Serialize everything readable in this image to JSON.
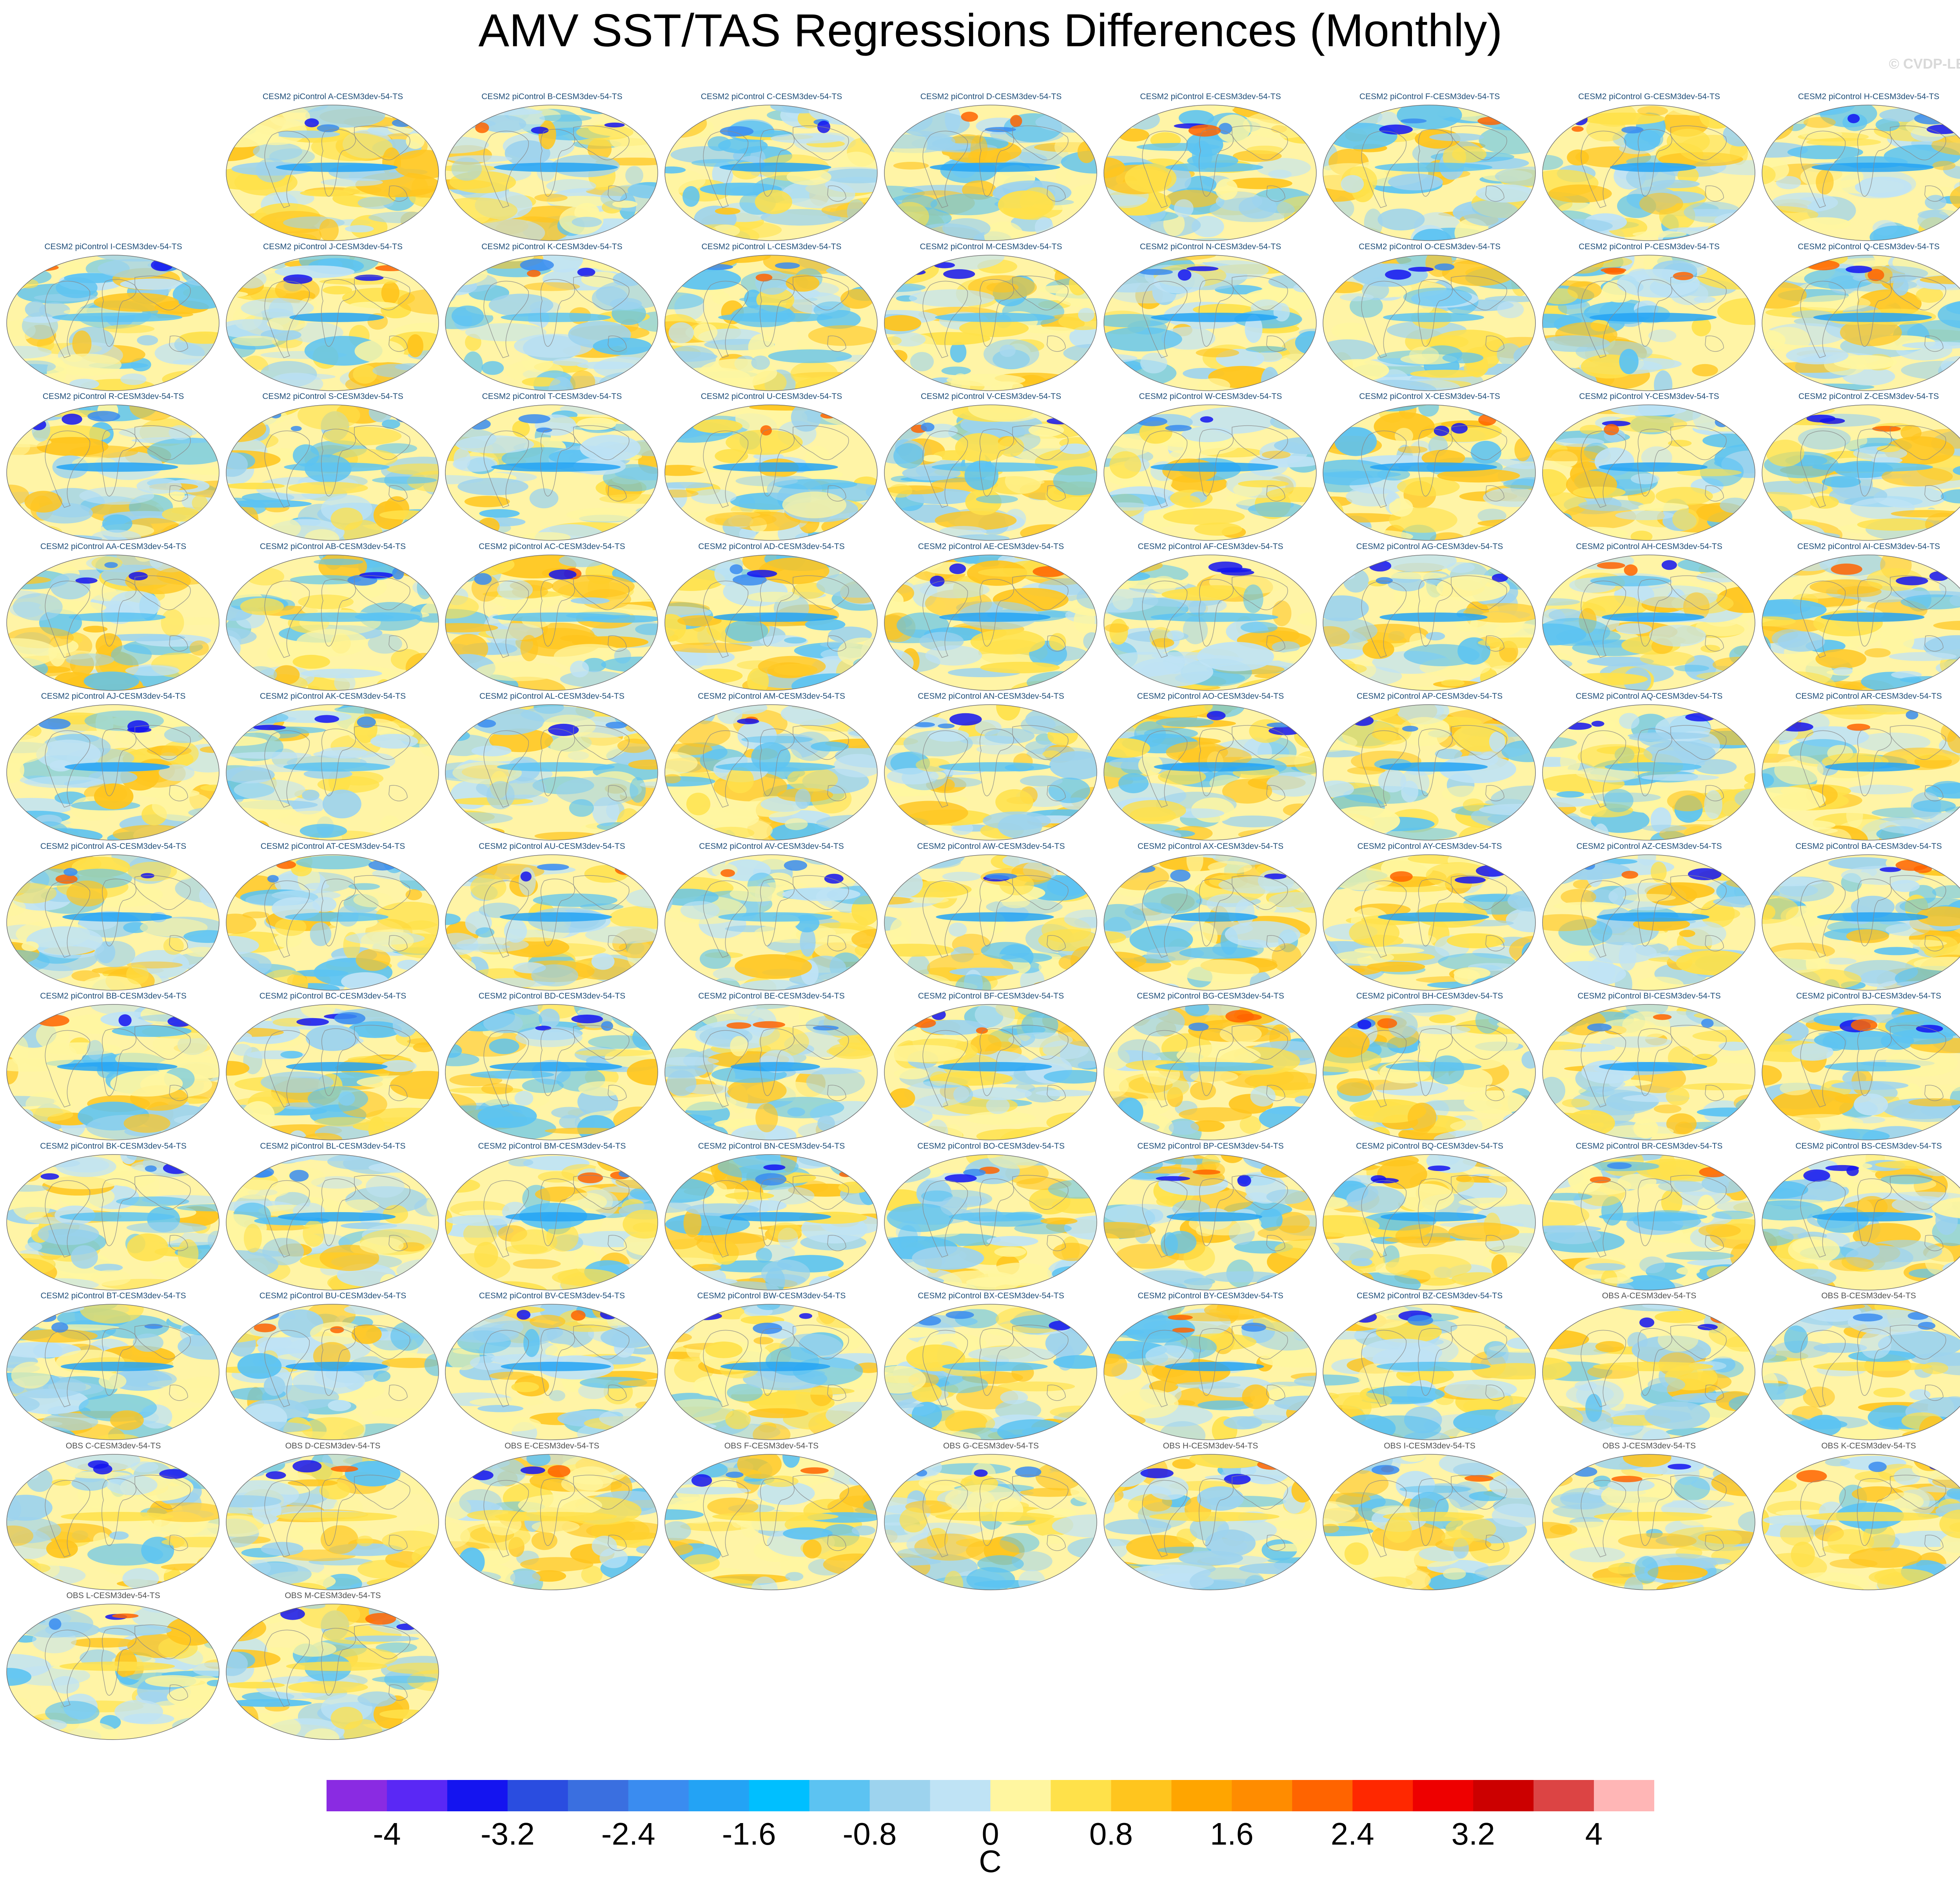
{
  "title": "AMV SST/TAS Regressions Differences (Monthly)",
  "credit": "© CVDP-LE",
  "chart_data": {
    "type": "map-panels",
    "projection": "Robinson (global)",
    "variable": "SST/TAS regression difference",
    "panels": [
      {
        "name": "CESM2 piControl A-CESM3dev-54-TS",
        "kind": "model"
      },
      {
        "name": "CESM2 piControl B-CESM3dev-54-TS",
        "kind": "model"
      },
      {
        "name": "CESM2 piControl C-CESM3dev-54-TS",
        "kind": "model"
      },
      {
        "name": "CESM2 piControl D-CESM3dev-54-TS",
        "kind": "model"
      },
      {
        "name": "CESM2 piControl E-CESM3dev-54-TS",
        "kind": "model"
      },
      {
        "name": "CESM2 piControl F-CESM3dev-54-TS",
        "kind": "model"
      },
      {
        "name": "CESM2 piControl G-CESM3dev-54-TS",
        "kind": "model"
      },
      {
        "name": "CESM2 piControl H-CESM3dev-54-TS",
        "kind": "model"
      },
      {
        "name": "CESM2 piControl I-CESM3dev-54-TS",
        "kind": "model"
      },
      {
        "name": "CESM2 piControl J-CESM3dev-54-TS",
        "kind": "model"
      },
      {
        "name": "CESM2 piControl K-CESM3dev-54-TS",
        "kind": "model"
      },
      {
        "name": "CESM2 piControl L-CESM3dev-54-TS",
        "kind": "model"
      },
      {
        "name": "CESM2 piControl M-CESM3dev-54-TS",
        "kind": "model"
      },
      {
        "name": "CESM2 piControl N-CESM3dev-54-TS",
        "kind": "model"
      },
      {
        "name": "CESM2 piControl O-CESM3dev-54-TS",
        "kind": "model"
      },
      {
        "name": "CESM2 piControl P-CESM3dev-54-TS",
        "kind": "model"
      },
      {
        "name": "CESM2 piControl Q-CESM3dev-54-TS",
        "kind": "model"
      },
      {
        "name": "CESM2 piControl R-CESM3dev-54-TS",
        "kind": "model"
      },
      {
        "name": "CESM2 piControl S-CESM3dev-54-TS",
        "kind": "model"
      },
      {
        "name": "CESM2 piControl T-CESM3dev-54-TS",
        "kind": "model"
      },
      {
        "name": "CESM2 piControl U-CESM3dev-54-TS",
        "kind": "model"
      },
      {
        "name": "CESM2 piControl V-CESM3dev-54-TS",
        "kind": "model"
      },
      {
        "name": "CESM2 piControl W-CESM3dev-54-TS",
        "kind": "model"
      },
      {
        "name": "CESM2 piControl X-CESM3dev-54-TS",
        "kind": "model"
      },
      {
        "name": "CESM2 piControl Y-CESM3dev-54-TS",
        "kind": "model"
      },
      {
        "name": "CESM2 piControl Z-CESM3dev-54-TS",
        "kind": "model"
      },
      {
        "name": "CESM2 piControl AA-CESM3dev-54-TS",
        "kind": "model"
      },
      {
        "name": "CESM2 piControl AB-CESM3dev-54-TS",
        "kind": "model"
      },
      {
        "name": "CESM2 piControl AC-CESM3dev-54-TS",
        "kind": "model"
      },
      {
        "name": "CESM2 piControl AD-CESM3dev-54-TS",
        "kind": "model"
      },
      {
        "name": "CESM2 piControl AE-CESM3dev-54-TS",
        "kind": "model"
      },
      {
        "name": "CESM2 piControl AF-CESM3dev-54-TS",
        "kind": "model"
      },
      {
        "name": "CESM2 piControl AG-CESM3dev-54-TS",
        "kind": "model"
      },
      {
        "name": "CESM2 piControl AH-CESM3dev-54-TS",
        "kind": "model"
      },
      {
        "name": "CESM2 piControl AI-CESM3dev-54-TS",
        "kind": "model"
      },
      {
        "name": "CESM2 piControl AJ-CESM3dev-54-TS",
        "kind": "model"
      },
      {
        "name": "CESM2 piControl AK-CESM3dev-54-TS",
        "kind": "model"
      },
      {
        "name": "CESM2 piControl AL-CESM3dev-54-TS",
        "kind": "model"
      },
      {
        "name": "CESM2 piControl AM-CESM3dev-54-TS",
        "kind": "model"
      },
      {
        "name": "CESM2 piControl AN-CESM3dev-54-TS",
        "kind": "model"
      },
      {
        "name": "CESM2 piControl AO-CESM3dev-54-TS",
        "kind": "model"
      },
      {
        "name": "CESM2 piControl AP-CESM3dev-54-TS",
        "kind": "model"
      },
      {
        "name": "CESM2 piControl AQ-CESM3dev-54-TS",
        "kind": "model"
      },
      {
        "name": "CESM2 piControl AR-CESM3dev-54-TS",
        "kind": "model"
      },
      {
        "name": "CESM2 piControl AS-CESM3dev-54-TS",
        "kind": "model"
      },
      {
        "name": "CESM2 piControl AT-CESM3dev-54-TS",
        "kind": "model"
      },
      {
        "name": "CESM2 piControl AU-CESM3dev-54-TS",
        "kind": "model"
      },
      {
        "name": "CESM2 piControl AV-CESM3dev-54-TS",
        "kind": "model"
      },
      {
        "name": "CESM2 piControl AW-CESM3dev-54-TS",
        "kind": "model"
      },
      {
        "name": "CESM2 piControl AX-CESM3dev-54-TS",
        "kind": "model"
      },
      {
        "name": "CESM2 piControl AY-CESM3dev-54-TS",
        "kind": "model"
      },
      {
        "name": "CESM2 piControl AZ-CESM3dev-54-TS",
        "kind": "model"
      },
      {
        "name": "CESM2 piControl BA-CESM3dev-54-TS",
        "kind": "model"
      },
      {
        "name": "CESM2 piControl BB-CESM3dev-54-TS",
        "kind": "model"
      },
      {
        "name": "CESM2 piControl BC-CESM3dev-54-TS",
        "kind": "model"
      },
      {
        "name": "CESM2 piControl BD-CESM3dev-54-TS",
        "kind": "model"
      },
      {
        "name": "CESM2 piControl BE-CESM3dev-54-TS",
        "kind": "model"
      },
      {
        "name": "CESM2 piControl BF-CESM3dev-54-TS",
        "kind": "model"
      },
      {
        "name": "CESM2 piControl BG-CESM3dev-54-TS",
        "kind": "model"
      },
      {
        "name": "CESM2 piControl BH-CESM3dev-54-TS",
        "kind": "model"
      },
      {
        "name": "CESM2 piControl BI-CESM3dev-54-TS",
        "kind": "model"
      },
      {
        "name": "CESM2 piControl BJ-CESM3dev-54-TS",
        "kind": "model"
      },
      {
        "name": "CESM2 piControl BK-CESM3dev-54-TS",
        "kind": "model"
      },
      {
        "name": "CESM2 piControl BL-CESM3dev-54-TS",
        "kind": "model"
      },
      {
        "name": "CESM2 piControl BM-CESM3dev-54-TS",
        "kind": "model"
      },
      {
        "name": "CESM2 piControl BN-CESM3dev-54-TS",
        "kind": "model"
      },
      {
        "name": "CESM2 piControl BO-CESM3dev-54-TS",
        "kind": "model"
      },
      {
        "name": "CESM2 piControl BP-CESM3dev-54-TS",
        "kind": "model"
      },
      {
        "name": "CESM2 piControl BQ-CESM3dev-54-TS",
        "kind": "model"
      },
      {
        "name": "CESM2 piControl BR-CESM3dev-54-TS",
        "kind": "model"
      },
      {
        "name": "CESM2 piControl BS-CESM3dev-54-TS",
        "kind": "model"
      },
      {
        "name": "CESM2 piControl BT-CESM3dev-54-TS",
        "kind": "model"
      },
      {
        "name": "CESM2 piControl BU-CESM3dev-54-TS",
        "kind": "model"
      },
      {
        "name": "CESM2 piControl BV-CESM3dev-54-TS",
        "kind": "model"
      },
      {
        "name": "CESM2 piControl BW-CESM3dev-54-TS",
        "kind": "model"
      },
      {
        "name": "CESM2 piControl BX-CESM3dev-54-TS",
        "kind": "model"
      },
      {
        "name": "CESM2 piControl BY-CESM3dev-54-TS",
        "kind": "model"
      },
      {
        "name": "CESM2 piControl BZ-CESM3dev-54-TS",
        "kind": "model"
      },
      {
        "name": "OBS A-CESM3dev-54-TS",
        "kind": "obs"
      },
      {
        "name": "OBS B-CESM3dev-54-TS",
        "kind": "obs"
      },
      {
        "name": "OBS C-CESM3dev-54-TS",
        "kind": "obs"
      },
      {
        "name": "OBS D-CESM3dev-54-TS",
        "kind": "obs"
      },
      {
        "name": "OBS E-CESM3dev-54-TS",
        "kind": "obs"
      },
      {
        "name": "OBS F-CESM3dev-54-TS",
        "kind": "obs"
      },
      {
        "name": "OBS G-CESM3dev-54-TS",
        "kind": "obs"
      },
      {
        "name": "OBS H-CESM3dev-54-TS",
        "kind": "obs"
      },
      {
        "name": "OBS I-CESM3dev-54-TS",
        "kind": "obs"
      },
      {
        "name": "OBS J-CESM3dev-54-TS",
        "kind": "obs"
      },
      {
        "name": "OBS K-CESM3dev-54-TS",
        "kind": "obs"
      },
      {
        "name": "OBS L-CESM3dev-54-TS",
        "kind": "obs"
      },
      {
        "name": "OBS M-CESM3dev-54-TS",
        "kind": "obs"
      }
    ],
    "colorbar": {
      "units": "C",
      "range": [
        -4.4,
        4.4
      ],
      "interval": 0.4,
      "tick_labels": [
        "-4",
        "-3.2",
        "-2.4",
        "-1.6",
        "-0.8",
        "0",
        "0.8",
        "1.6",
        "2.4",
        "3.2",
        "4"
      ],
      "tick_values": [
        -4,
        -3.2,
        -2.4,
        -1.6,
        -0.8,
        0,
        0.8,
        1.6,
        2.4,
        3.2,
        4
      ],
      "colors": [
        "#8a2be2",
        "#5a28f5",
        "#1414f0",
        "#2a4de0",
        "#3a6fe0",
        "#3a8cf0",
        "#23a3f5",
        "#00bfff",
        "#5cc3f2",
        "#9dd3ee",
        "#bfe3f5",
        "#fff6a0",
        "#ffe14a",
        "#ffc51e",
        "#ffa500",
        "#ff8c00",
        "#ff6400",
        "#ff2800",
        "#ee0000",
        "#cc0000",
        "#dc4444",
        "#ffb6b6"
      ]
    }
  }
}
